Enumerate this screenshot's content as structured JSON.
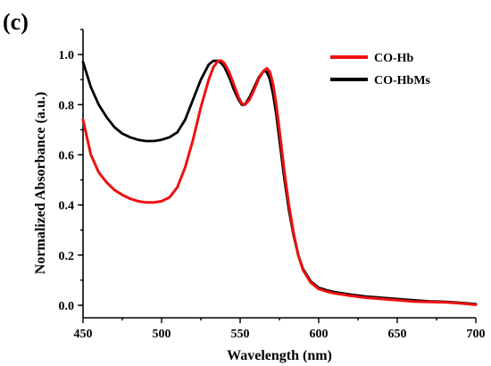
{
  "panel_label": "(c)",
  "chart_data": {
    "type": "line",
    "xlabel": "Wavelength (nm)",
    "ylabel": "Normalized Absorbance (a.u.)",
    "xlim": [
      450,
      700
    ],
    "ylim": [
      -0.05,
      1.1
    ],
    "xticks": [
      450,
      500,
      550,
      600,
      650,
      700
    ],
    "yticks": [
      0.0,
      0.2,
      0.4,
      0.6,
      0.8,
      1.0
    ],
    "xtick_labels": [
      "450",
      "500",
      "550",
      "600",
      "650",
      "700"
    ],
    "ytick_labels": [
      "0.0",
      "0.2",
      "0.4",
      "0.6",
      "0.8",
      "1.0"
    ],
    "grid": false,
    "legend_position": "top-right",
    "series": [
      {
        "name": "CO-Hb",
        "color": "#ee1111",
        "x": [
          450,
          455,
          460,
          465,
          470,
          475,
          480,
          485,
          490,
          495,
          500,
          505,
          510,
          515,
          520,
          525,
          530,
          533,
          536,
          538,
          540,
          543,
          546,
          549,
          551,
          553,
          556,
          559,
          562,
          565,
          567,
          569,
          571,
          573,
          575,
          578,
          581,
          584,
          587,
          590,
          595,
          600,
          605,
          610,
          620,
          630,
          640,
          650,
          660,
          670,
          680,
          690,
          700
        ],
        "y": [
          0.74,
          0.6,
          0.53,
          0.49,
          0.46,
          0.44,
          0.425,
          0.415,
          0.41,
          0.41,
          0.415,
          0.43,
          0.47,
          0.55,
          0.66,
          0.79,
          0.9,
          0.95,
          0.975,
          0.975,
          0.965,
          0.93,
          0.88,
          0.83,
          0.805,
          0.8,
          0.82,
          0.86,
          0.905,
          0.935,
          0.945,
          0.93,
          0.88,
          0.8,
          0.7,
          0.54,
          0.4,
          0.29,
          0.2,
          0.14,
          0.09,
          0.065,
          0.055,
          0.048,
          0.038,
          0.03,
          0.025,
          0.02,
          0.015,
          0.013,
          0.012,
          0.008,
          0.002
        ]
      },
      {
        "name": "CO-HbMs",
        "color": "#000000",
        "x": [
          450,
          455,
          460,
          465,
          470,
          475,
          480,
          485,
          490,
          495,
          500,
          505,
          510,
          515,
          520,
          525,
          530,
          533,
          536,
          538,
          540,
          543,
          546,
          549,
          551,
          553,
          556,
          559,
          562,
          565,
          567,
          569,
          571,
          573,
          575,
          578,
          581,
          584,
          587,
          590,
          595,
          600,
          605,
          610,
          620,
          630,
          640,
          650,
          660,
          670,
          680,
          690,
          700
        ],
        "y": [
          0.97,
          0.87,
          0.8,
          0.75,
          0.71,
          0.685,
          0.67,
          0.66,
          0.655,
          0.655,
          0.66,
          0.67,
          0.69,
          0.74,
          0.82,
          0.9,
          0.96,
          0.975,
          0.975,
          0.965,
          0.95,
          0.91,
          0.86,
          0.82,
          0.8,
          0.8,
          0.83,
          0.87,
          0.91,
          0.935,
          0.93,
          0.9,
          0.84,
          0.76,
          0.66,
          0.51,
          0.38,
          0.28,
          0.2,
          0.145,
          0.095,
          0.07,
          0.06,
          0.053,
          0.043,
          0.035,
          0.03,
          0.025,
          0.02,
          0.016,
          0.014,
          0.01,
          0.005
        ]
      }
    ]
  }
}
